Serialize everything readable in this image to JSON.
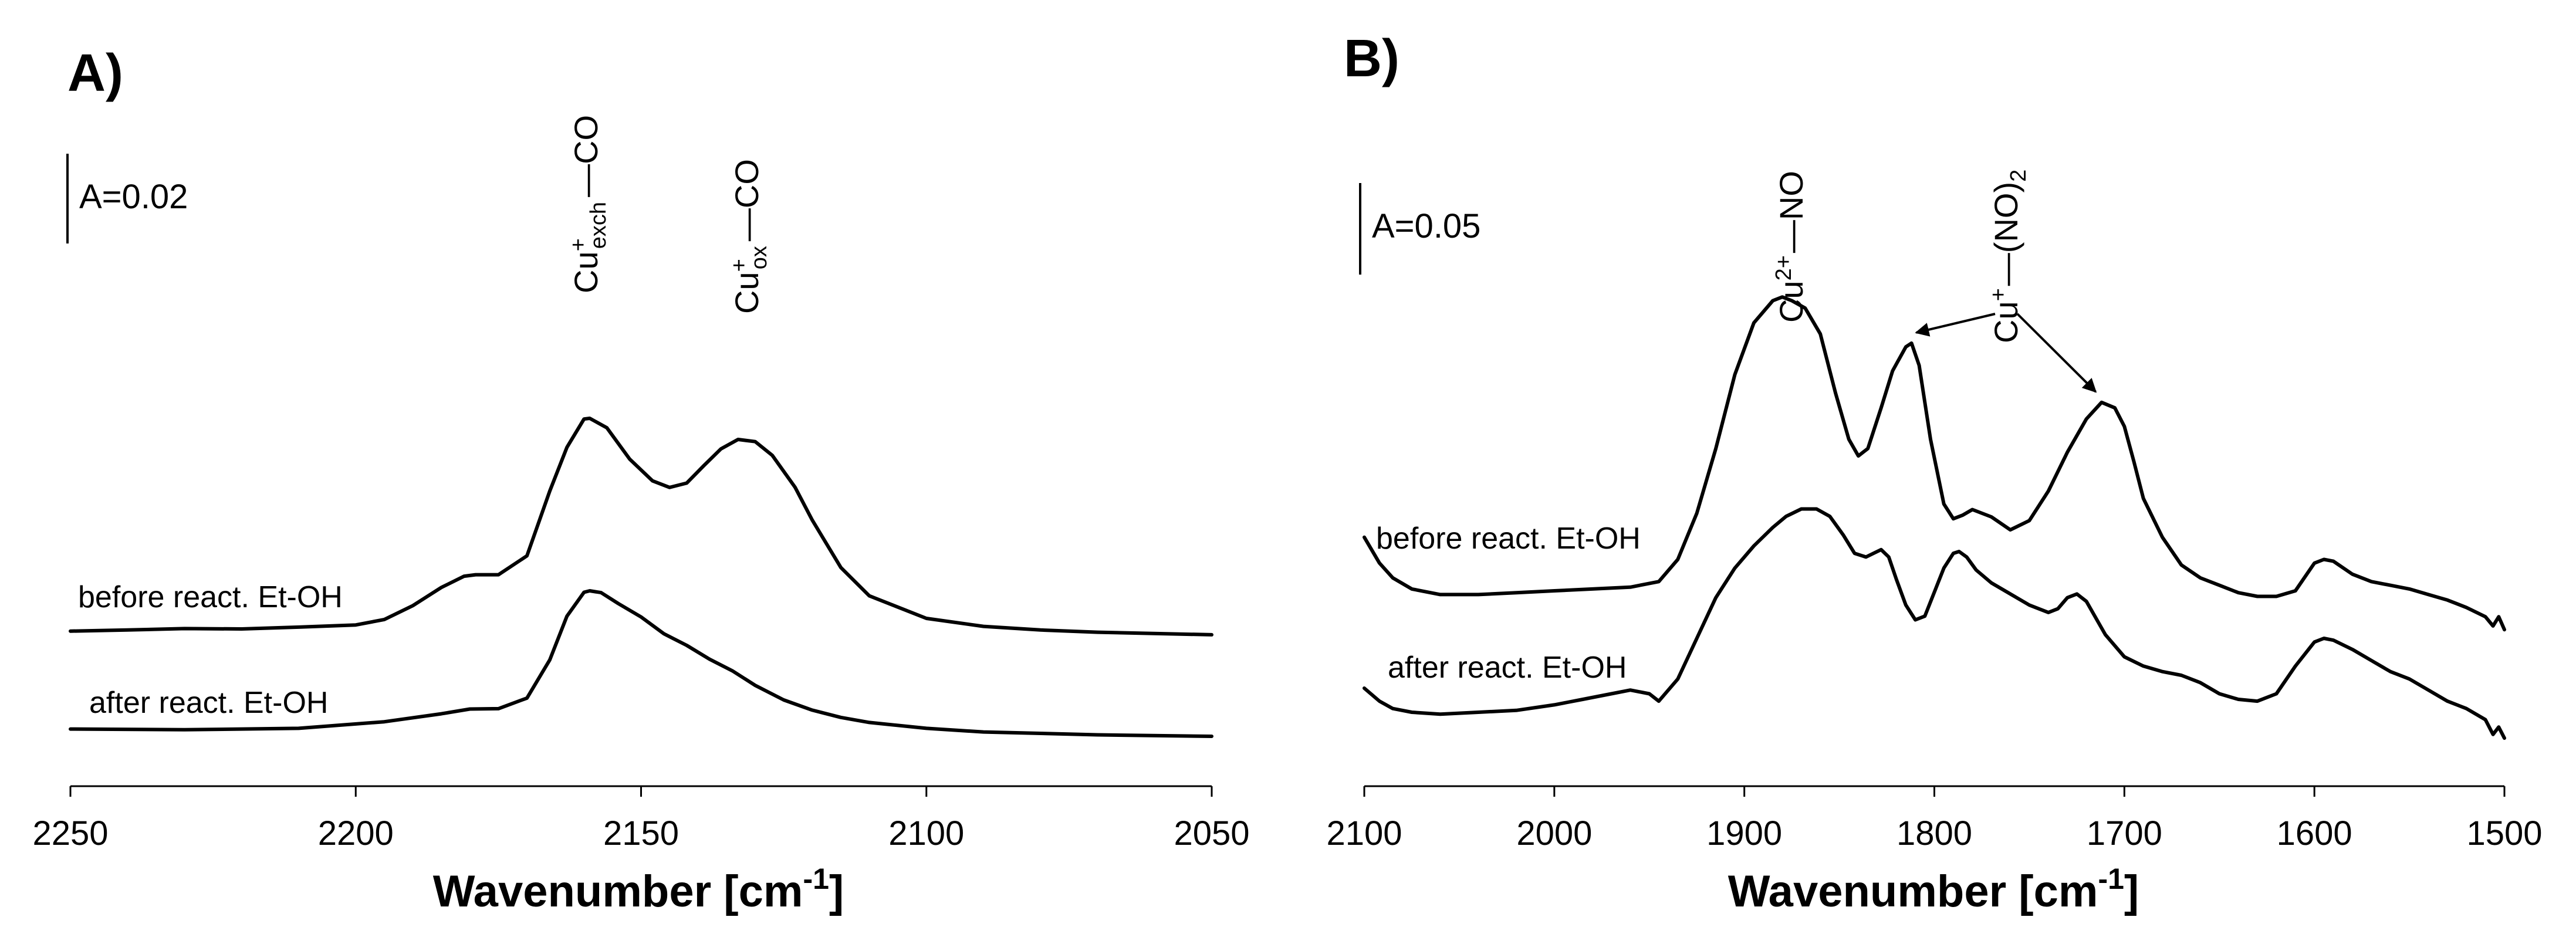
{
  "chart_data": [
    {
      "type": "line",
      "panel": "A)",
      "xlabel": "Wavenumber [cm",
      "xlabel_sup": "-1",
      "xlabel_end": "]",
      "ylabel": "",
      "xlim": [
        2250,
        2050
      ],
      "ylim": [
        0,
        0.11
      ],
      "xticks": [
        2250,
        2200,
        2150,
        2100,
        2050
      ],
      "scale_bar": {
        "label": "A=0.02",
        "value": 0.02
      },
      "peak_labels": [
        {
          "base": "Cu",
          "sup": "+",
          "sub": "exch",
          "tail": "—CO",
          "x": 2159
        },
        {
          "base": "Cu",
          "sup": "+",
          "sub": "ox",
          "tail": "—CO",
          "x": 2132
        }
      ],
      "series": [
        {
          "name": "before react. Et-OH",
          "x": [
            2250,
            2240,
            2230,
            2220,
            2210,
            2200,
            2195,
            2190,
            2185,
            2181,
            2179,
            2175,
            2170,
            2166,
            2163,
            2160,
            2159,
            2156,
            2152,
            2148,
            2145,
            2142,
            2139,
            2136,
            2133,
            2130,
            2127,
            2123,
            2120,
            2115,
            2110,
            2100,
            2090,
            2080,
            2070,
            2050
          ],
          "y": [
            0.0015,
            0.0018,
            0.0022,
            0.0021,
            0.0026,
            0.0032,
            0.0047,
            0.0085,
            0.0135,
            0.0166,
            0.017,
            0.017,
            0.0222,
            0.04,
            0.052,
            0.0598,
            0.06,
            0.0574,
            0.0488,
            0.0428,
            0.041,
            0.0422,
            0.047,
            0.0516,
            0.0542,
            0.0536,
            0.0498,
            0.041,
            0.032,
            0.019,
            0.0112,
            0.005,
            0.0028,
            0.0018,
            0.0012,
            0.0005
          ]
        },
        {
          "name": "after react. Et-OH",
          "x": [
            2250,
            2230,
            2210,
            2195,
            2185,
            2180,
            2175,
            2170,
            2166,
            2163,
            2160,
            2159,
            2157,
            2154,
            2150,
            2146,
            2142,
            2138,
            2134,
            2130,
            2125,
            2120,
            2115,
            2110,
            2100,
            2090,
            2080,
            2070,
            2050
          ],
          "y": [
            0.002,
            0.0018,
            0.0022,
            0.004,
            0.0062,
            0.0075,
            0.0076,
            0.0105,
            0.021,
            0.033,
            0.0396,
            0.04,
            0.0395,
            0.0365,
            0.0328,
            0.0282,
            0.025,
            0.0212,
            0.018,
            0.014,
            0.01,
            0.0072,
            0.0052,
            0.0038,
            0.0022,
            0.0012,
            0.0008,
            0.0004,
            0.0
          ]
        }
      ]
    },
    {
      "type": "line",
      "panel": "B)",
      "xlabel": "Wavenumber [cm",
      "xlabel_sup": "-1",
      "xlabel_end": "]",
      "ylabel": "",
      "xlim": [
        2100,
        1500
      ],
      "ylim": [
        0,
        0.31
      ],
      "xticks": [
        2100,
        2000,
        1900,
        1800,
        1700,
        1600,
        1500
      ],
      "scale_bar": {
        "label": "A=0.05",
        "value": 0.05
      },
      "peak_labels": [
        {
          "base": "Cu",
          "sup": "2+",
          "sub": "",
          "tail": "—NO",
          "x": 1880
        },
        {
          "base": "Cu",
          "sup": "+",
          "sub": "",
          "tail": "—(NO)",
          "tail_sub": "2",
          "x": 1760,
          "arrows_to": [
            1812,
            1712
          ]
        }
      ],
      "series": [
        {
          "name": "before react. Et-OH",
          "x": [
            2100,
            2092,
            2085,
            2075,
            2060,
            2040,
            2020,
            2000,
            1980,
            1960,
            1945,
            1935,
            1925,
            1915,
            1905,
            1895,
            1885,
            1880,
            1875,
            1868,
            1860,
            1852,
            1845,
            1840,
            1835,
            1828,
            1822,
            1815,
            1812,
            1808,
            1802,
            1795,
            1790,
            1785,
            1780,
            1770,
            1760,
            1750,
            1740,
            1730,
            1720,
            1712,
            1705,
            1700,
            1695,
            1690,
            1680,
            1670,
            1660,
            1650,
            1640,
            1630,
            1620,
            1610,
            1600,
            1595,
            1590,
            1580,
            1570,
            1560,
            1550,
            1540,
            1530,
            1520,
            1510,
            1506,
            1503,
            1500
          ],
          "y": [
            0.122,
            0.108,
            0.1,
            0.094,
            0.091,
            0.091,
            0.092,
            0.093,
            0.094,
            0.095,
            0.098,
            0.11,
            0.135,
            0.17,
            0.21,
            0.238,
            0.25,
            0.252,
            0.25,
            0.246,
            0.232,
            0.2,
            0.175,
            0.166,
            0.17,
            0.192,
            0.212,
            0.225,
            0.227,
            0.215,
            0.175,
            0.14,
            0.132,
            0.134,
            0.137,
            0.133,
            0.126,
            0.131,
            0.147,
            0.168,
            0.186,
            0.195,
            0.192,
            0.182,
            0.163,
            0.143,
            0.122,
            0.107,
            0.1,
            0.096,
            0.092,
            0.09,
            0.09,
            0.093,
            0.108,
            0.11,
            0.109,
            0.102,
            0.098,
            0.096,
            0.094,
            0.091,
            0.088,
            0.084,
            0.079,
            0.074,
            0.079,
            0.072
          ]
        },
        {
          "name": "after react. Et-OH",
          "x": [
            2100,
            2092,
            2085,
            2075,
            2060,
            2040,
            2020,
            2000,
            1985,
            1970,
            1960,
            1950,
            1945,
            1935,
            1925,
            1915,
            1905,
            1895,
            1885,
            1878,
            1870,
            1862,
            1855,
            1848,
            1842,
            1836,
            1832,
            1828,
            1824,
            1820,
            1815,
            1810,
            1805,
            1800,
            1795,
            1790,
            1787,
            1783,
            1778,
            1770,
            1760,
            1750,
            1740,
            1735,
            1730,
            1725,
            1720,
            1710,
            1700,
            1690,
            1680,
            1670,
            1660,
            1650,
            1640,
            1630,
            1620,
            1610,
            1600,
            1595,
            1590,
            1580,
            1570,
            1560,
            1550,
            1540,
            1530,
            1520,
            1510,
            1506,
            1503,
            1500
          ],
          "y": [
            0.053,
            0.046,
            0.042,
            0.04,
            0.039,
            0.04,
            0.041,
            0.044,
            0.047,
            0.05,
            0.052,
            0.05,
            0.046,
            0.058,
            0.08,
            0.102,
            0.118,
            0.13,
            0.14,
            0.146,
            0.15,
            0.15,
            0.146,
            0.136,
            0.126,
            0.124,
            0.126,
            0.128,
            0.124,
            0.112,
            0.098,
            0.09,
            0.092,
            0.105,
            0.118,
            0.126,
            0.127,
            0.124,
            0.117,
            0.11,
            0.104,
            0.098,
            0.094,
            0.096,
            0.102,
            0.104,
            0.1,
            0.082,
            0.07,
            0.065,
            0.062,
            0.06,
            0.056,
            0.05,
            0.047,
            0.046,
            0.05,
            0.065,
            0.078,
            0.08,
            0.079,
            0.074,
            0.068,
            0.062,
            0.058,
            0.052,
            0.046,
            0.042,
            0.036,
            0.028,
            0.032,
            0.026
          ]
        }
      ]
    }
  ]
}
